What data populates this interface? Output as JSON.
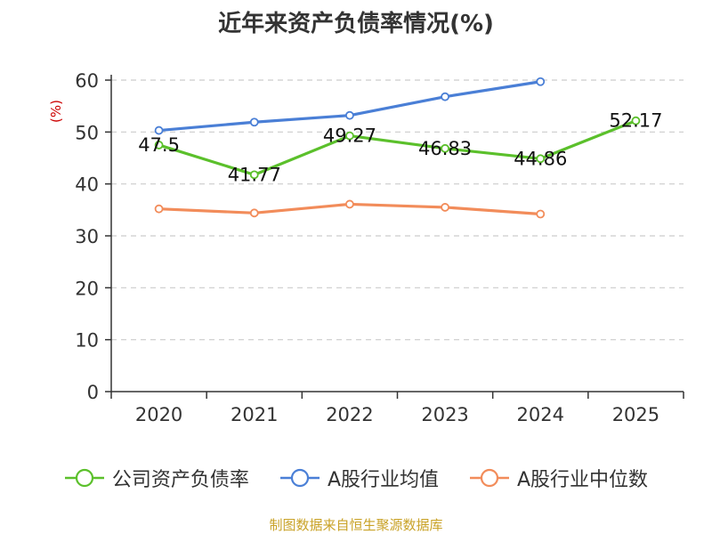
{
  "title": "近年来资产负债率情况(%)",
  "source_note": "制图数据来自恒生聚源数据库",
  "colors": {
    "source_note": "#c9a227",
    "unit_label": "#cc0000",
    "axis": "#333333",
    "grid": "#cccccc"
  },
  "chart_data": {
    "type": "line",
    "title": "近年来资产负债率情况(%)",
    "ylabel": "(%)",
    "xlabel": "",
    "categories": [
      "2020",
      "2021",
      "2022",
      "2023",
      "2024",
      "2025"
    ],
    "ylim": [
      0,
      60
    ],
    "yticks": [
      0,
      10,
      20,
      30,
      40,
      50,
      60
    ],
    "grid": true,
    "grid_style": "dashed horizontal",
    "legend_position": "bottom",
    "series": [
      {
        "name": "公司资产负债率",
        "color": "#5bc02b",
        "values": [
          47.5,
          41.77,
          49.27,
          46.83,
          44.86,
          52.17
        ],
        "labels": [
          "47.5",
          "41.77",
          "49.27",
          "46.83",
          "44.86",
          "52.17"
        ]
      },
      {
        "name": "A股行业均值",
        "color": "#4a7fd6",
        "values": [
          50.3,
          51.9,
          53.2,
          56.8,
          59.7,
          null
        ]
      },
      {
        "name": "A股行业中位数",
        "color": "#f28c5a",
        "values": [
          35.2,
          34.4,
          36.1,
          35.5,
          34.2,
          null
        ]
      }
    ]
  }
}
